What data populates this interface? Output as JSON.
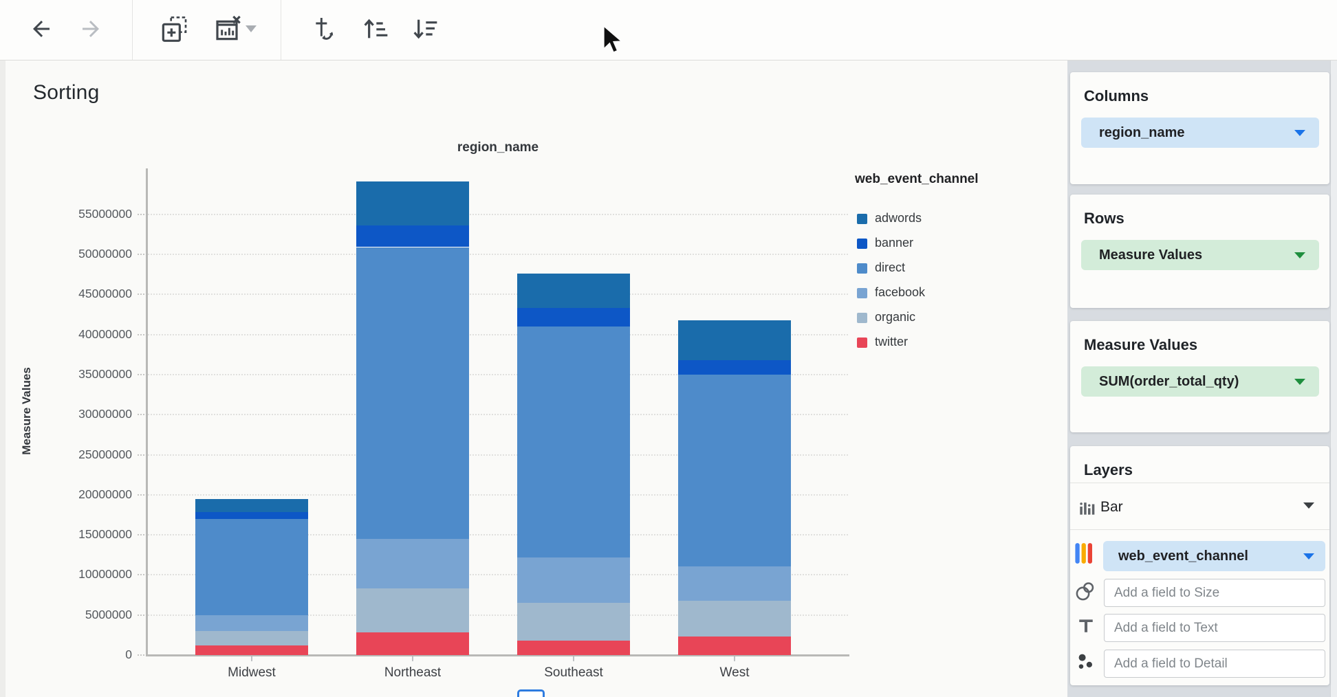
{
  "header": {
    "title": "Sorting"
  },
  "toolbar": {
    "icons": [
      "back",
      "forward",
      "new-visualization",
      "remove-visualization",
      "visualization-menu-caret",
      "swap-axes",
      "sort-ascending",
      "sort-descending"
    ]
  },
  "chart_data": {
    "type": "bar",
    "stacked": true,
    "title": "region_name",
    "xlabel": "",
    "ylabel": "Measure Values",
    "legend_title": "web_event_channel",
    "legend_position": "right",
    "grid": true,
    "categories": [
      "Midwest",
      "Northeast",
      "Southeast",
      "West"
    ],
    "series": [
      {
        "name": "adwords",
        "color": "#1a6cab",
        "values": [
          1700000,
          5500000,
          4300000,
          5000000
        ]
      },
      {
        "name": "banner",
        "color": "#0d57c6",
        "values": [
          800000,
          2700000,
          2300000,
          1800000
        ]
      },
      {
        "name": "direct",
        "color": "#4e8bca",
        "values": [
          12000000,
          36400000,
          28800000,
          23900000
        ]
      },
      {
        "name": "facebook",
        "color": "#79a4d2",
        "values": [
          2000000,
          6200000,
          5700000,
          4300000
        ]
      },
      {
        "name": "organic",
        "color": "#9fb8cd",
        "values": [
          1800000,
          5500000,
          4700000,
          4500000
        ]
      },
      {
        "name": "twitter",
        "color": "#e84557",
        "values": [
          1200000,
          2800000,
          1800000,
          2300000
        ]
      }
    ],
    "stack_order_bottom_to_top": [
      "twitter",
      "organic",
      "facebook",
      "direct",
      "banner",
      "adwords"
    ],
    "yticks": [
      0,
      5000000,
      10000000,
      15000000,
      20000000,
      25000000,
      30000000,
      35000000,
      40000000,
      45000000,
      50000000,
      55000000
    ],
    "ylim": [
      0,
      60500000
    ],
    "totals": {
      "Midwest": 19500000,
      "Northeast": 59100000,
      "Southeast": 47600000,
      "West": 41800000
    }
  },
  "panel": {
    "columns": {
      "header": "Columns",
      "field": "region_name"
    },
    "rows": {
      "header": "Rows",
      "field": "Measure Values"
    },
    "measure_values": {
      "header": "Measure Values",
      "field": "SUM(order_total_qty)"
    },
    "layers": {
      "header": "Layers",
      "layer_type": "Bar",
      "color_field": "web_event_channel",
      "size_placeholder": "Add a field to Size",
      "text_placeholder": "Add a field to Text",
      "detail_placeholder": "Add a field to Detail"
    }
  },
  "colors": {
    "accent_blue": "#1a73e8",
    "accent_green": "#1e8e3e",
    "pill_blue_bg": "#cfe4f6",
    "pill_green_bg": "#d3ecd9",
    "panel_bg": "#d8dce1",
    "axis_line": "#b8b8b6",
    "gridline": "#dcdcda"
  }
}
